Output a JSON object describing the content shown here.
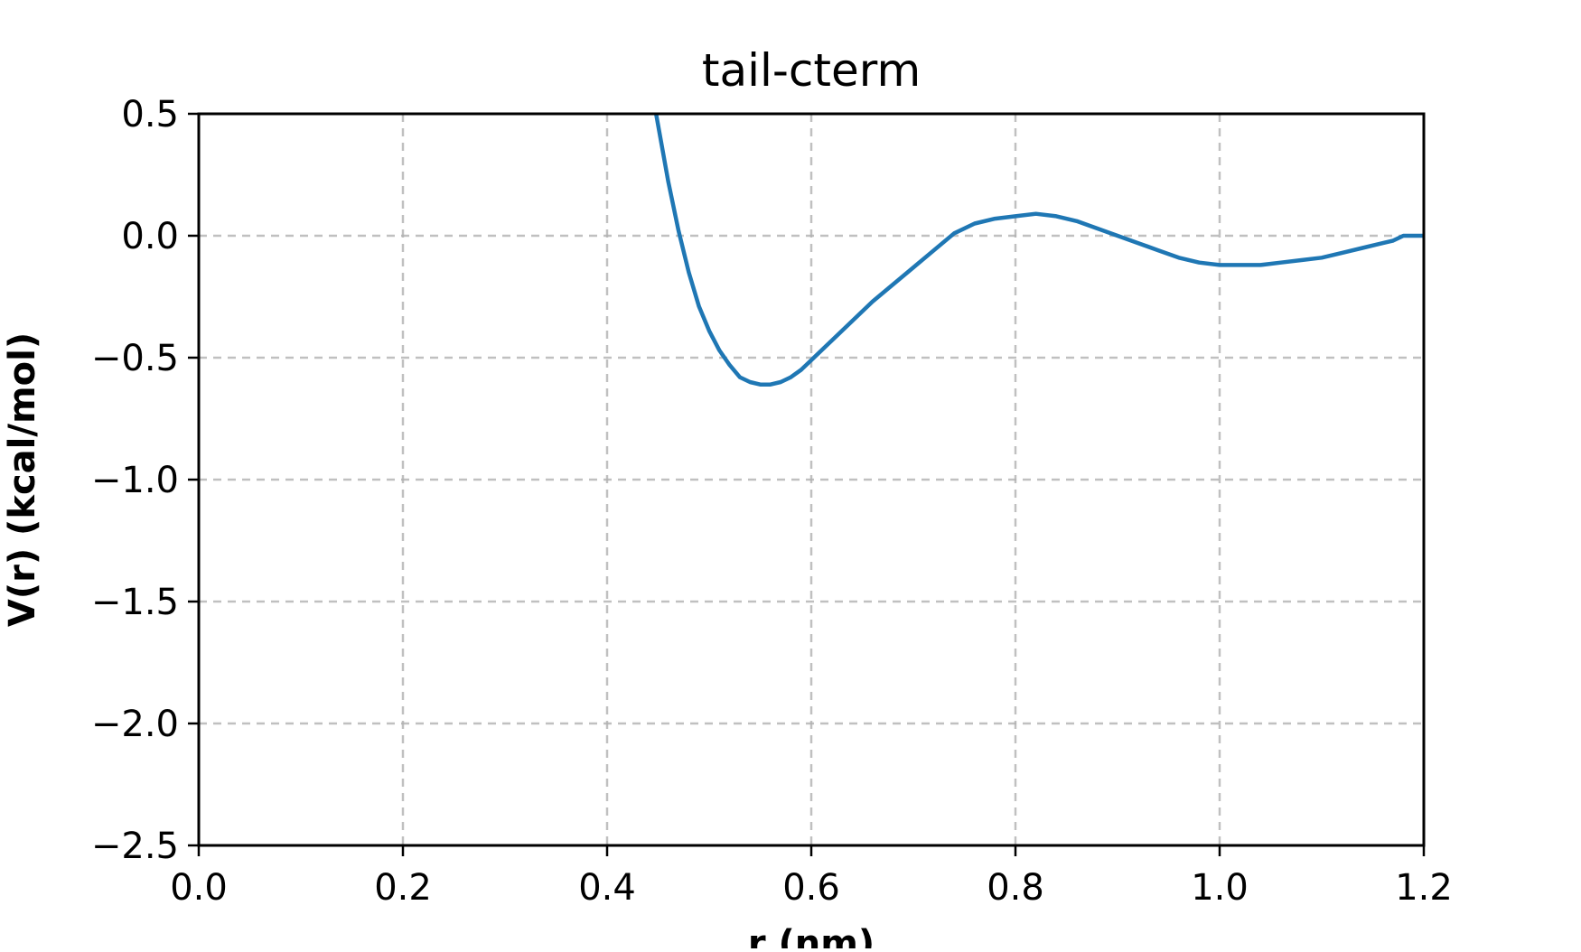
{
  "chart_data": {
    "type": "line",
    "title": "tail-cterm",
    "xlabel": "r (nm)",
    "ylabel": "V(r) (kcal/mol)",
    "xlim": [
      0.0,
      1.2
    ],
    "ylim": [
      -2.5,
      0.5
    ],
    "xticks": [
      0.0,
      0.2,
      0.4,
      0.6,
      0.8,
      1.0,
      1.2
    ],
    "xtick_labels": [
      "0.0",
      "0.2",
      "0.4",
      "0.6",
      "0.8",
      "1.0",
      "1.2"
    ],
    "yticks": [
      0.5,
      0.0,
      -0.5,
      -1.0,
      -1.5,
      -2.0,
      -2.5
    ],
    "ytick_labels": [
      "0.5",
      "0.0",
      "−0.5",
      "−1.0",
      "−1.5",
      "−2.0",
      "−2.5"
    ],
    "grid": true,
    "grid_style": "dashed",
    "series": [
      {
        "color": "#1f77b4",
        "x": [
          0.448,
          0.46,
          0.47,
          0.48,
          0.49,
          0.5,
          0.51,
          0.52,
          0.53,
          0.54,
          0.55,
          0.56,
          0.57,
          0.58,
          0.59,
          0.6,
          0.62,
          0.64,
          0.66,
          0.68,
          0.7,
          0.72,
          0.74,
          0.76,
          0.78,
          0.8,
          0.82,
          0.84,
          0.86,
          0.88,
          0.9,
          0.92,
          0.94,
          0.96,
          0.98,
          1.0,
          1.02,
          1.04,
          1.06,
          1.08,
          1.1,
          1.12,
          1.14,
          1.16,
          1.17,
          1.18,
          1.2
        ],
        "y": [
          0.5,
          0.22,
          0.02,
          -0.15,
          -0.29,
          -0.39,
          -0.47,
          -0.53,
          -0.58,
          -0.6,
          -0.61,
          -0.61,
          -0.6,
          -0.58,
          -0.55,
          -0.51,
          -0.43,
          -0.35,
          -0.27,
          -0.2,
          -0.13,
          -0.06,
          0.01,
          0.05,
          0.07,
          0.08,
          0.09,
          0.08,
          0.06,
          0.03,
          0.0,
          -0.03,
          -0.06,
          -0.09,
          -0.11,
          -0.12,
          -0.12,
          -0.12,
          -0.11,
          -0.1,
          -0.09,
          -0.07,
          -0.05,
          -0.03,
          -0.02,
          0.0,
          0.0
        ]
      }
    ]
  }
}
